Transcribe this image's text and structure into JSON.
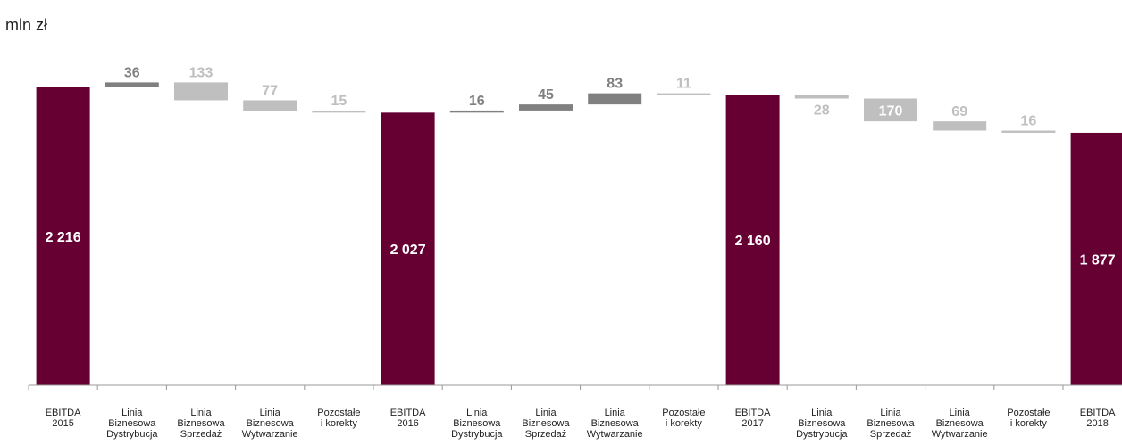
{
  "unit_label": "mln zł",
  "colors": {
    "total": "#660033",
    "increase": "#808080",
    "decrease": "#BFBFBF",
    "axis": "#999999",
    "label_on_bar": "#ffffff"
  },
  "chart_data": {
    "type": "waterfall",
    "title": "",
    "unit": "mln zł",
    "ylim": [
      0,
      2400
    ],
    "bars": [
      {
        "category": [
          "EBITDA",
          "2015"
        ],
        "kind": "total",
        "value": 2216,
        "label": "2 216"
      },
      {
        "category": [
          "Linia",
          "Biznesowa",
          "Dystrybucja"
        ],
        "kind": "increase",
        "value": 36,
        "label": "36"
      },
      {
        "category": [
          "Linia",
          "Biznesowa",
          "Sprzedaż"
        ],
        "kind": "decrease",
        "value": -133,
        "label": "133"
      },
      {
        "category": [
          "Linia",
          "Biznesowa",
          "Wytwarzanie"
        ],
        "kind": "decrease",
        "value": -77,
        "label": "77"
      },
      {
        "category": [
          "Pozostałe",
          "i korekty"
        ],
        "kind": "decrease",
        "value": -15,
        "label": "15"
      },
      {
        "category": [
          "EBITDA",
          "2016"
        ],
        "kind": "total",
        "value": 2027,
        "label": "2 027"
      },
      {
        "category": [
          "Linia",
          "Biznesowa",
          "Dystrybucja"
        ],
        "kind": "increase",
        "value": 16,
        "label": "16"
      },
      {
        "category": [
          "Linia",
          "Biznesowa",
          "Sprzedaż"
        ],
        "kind": "increase",
        "value": 45,
        "label": "45"
      },
      {
        "category": [
          "Linia",
          "Biznesowa",
          "Wytwarzanie"
        ],
        "kind": "increase",
        "value": 83,
        "label": "83"
      },
      {
        "category": [
          "Pozostałe",
          "i korekty"
        ],
        "kind": "decrease",
        "value": -11,
        "label": "11"
      },
      {
        "category": [
          "EBITDA",
          "2017"
        ],
        "kind": "total",
        "value": 2160,
        "label": "2 160"
      },
      {
        "category": [
          "Linia",
          "Biznesowa",
          "Dystrybucja"
        ],
        "kind": "decrease",
        "value": -28,
        "label": "28"
      },
      {
        "category": [
          "Linia",
          "Biznesowa",
          "Sprzedaż"
        ],
        "kind": "decrease",
        "value": -170,
        "label": "170"
      },
      {
        "category": [
          "Linia",
          "Biznesowa",
          "Wytwarzanie"
        ],
        "kind": "decrease",
        "value": -69,
        "label": "69"
      },
      {
        "category": [
          "Pozostałe",
          "i korekty"
        ],
        "kind": "decrease",
        "value": -16,
        "label": "16"
      },
      {
        "category": [
          "EBITDA",
          "2018"
        ],
        "kind": "total",
        "value": 1877,
        "label": "1 877"
      }
    ]
  }
}
